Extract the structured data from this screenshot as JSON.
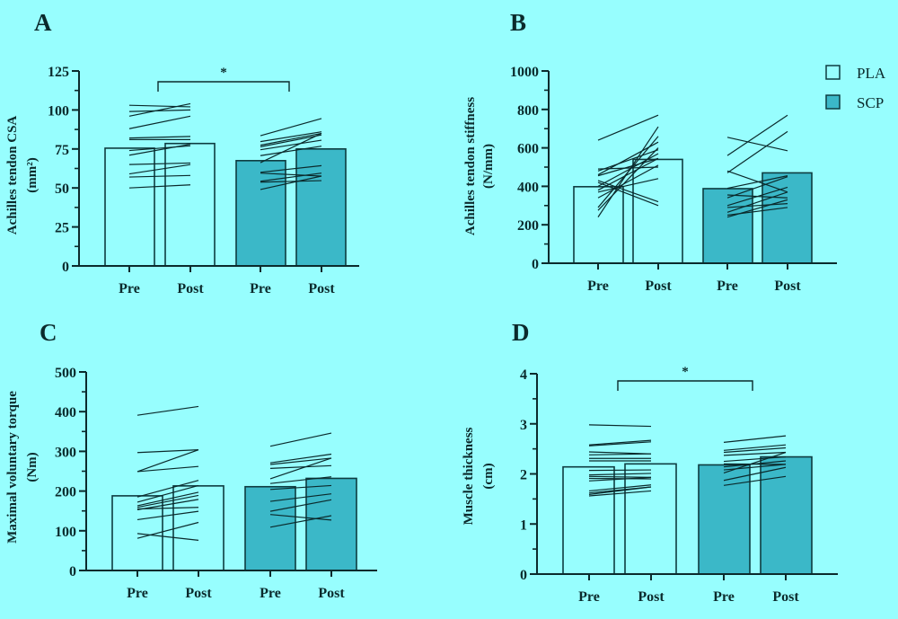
{
  "colors": {
    "background": "#97FEFE",
    "pla_fill": "#97FEFE",
    "scp_fill": "#3BB8C8",
    "outline": "#0E3C40",
    "line": "#0b2a2c"
  },
  "legend": {
    "placement": "top-right",
    "items": [
      {
        "label": "PLA",
        "group": "PLA"
      },
      {
        "label": "SCP",
        "group": "SCP"
      }
    ]
  },
  "chart_data": [
    {
      "panel": "A",
      "type": "bar",
      "ylabel": "Achilles tendon CSA",
      "yunit": "(mm²)",
      "ylim": [
        0,
        125
      ],
      "yticks": [
        0,
        25,
        50,
        75,
        100,
        125
      ],
      "categories": [
        "Pre",
        "Post",
        "Pre",
        "Post"
      ],
      "groups": [
        "PLA",
        "PLA",
        "SCP",
        "SCP"
      ],
      "values": [
        75.5,
        78.5,
        67.5,
        75
      ],
      "significance": {
        "label": "*",
        "between": [
          0,
          2
        ]
      },
      "paired": {
        "PLA": [
          [
            103,
            102
          ],
          [
            99,
            100
          ],
          [
            96,
            104
          ],
          [
            88,
            96
          ],
          [
            82,
            83
          ],
          [
            81,
            81
          ],
          [
            74,
            77
          ],
          [
            71,
            78
          ],
          [
            65,
            66
          ],
          [
            59,
            65
          ],
          [
            57,
            58
          ],
          [
            50,
            52
          ]
        ],
        "SCP": [
          [
            83.5,
            94.5
          ],
          [
            79.7,
            86
          ],
          [
            77.4,
            85
          ],
          [
            76.4,
            84
          ],
          [
            74.5,
            80.6
          ],
          [
            70.7,
            76.8
          ],
          [
            66.2,
            85
          ],
          [
            60,
            64.3
          ],
          [
            59.5,
            57.6
          ],
          [
            54.3,
            59.5
          ],
          [
            53.7,
            54.7
          ],
          [
            49,
            57.6
          ]
        ]
      }
    },
    {
      "panel": "B",
      "type": "bar",
      "ylabel": "Achilles tendon stiffness",
      "yunit": "(N/mm)",
      "ylim": [
        0,
        1000
      ],
      "yticks": [
        0,
        200,
        400,
        600,
        800,
        1000
      ],
      "categories": [
        "Pre",
        "Post",
        "Pre",
        "Post"
      ],
      "groups": [
        "PLA",
        "PLA",
        "SCP",
        "SCP"
      ],
      "values": [
        398,
        540,
        388,
        470
      ],
      "paired": {
        "PLA": [
          [
            640,
            770
          ],
          [
            490,
            500
          ],
          [
            480,
            590
          ],
          [
            460,
            630
          ],
          [
            455,
            545
          ],
          [
            430,
            320
          ],
          [
            420,
            300
          ],
          [
            400,
            570
          ],
          [
            380,
            545
          ],
          [
            370,
            440
          ],
          [
            340,
            510
          ],
          [
            290,
            660
          ],
          [
            275,
            600
          ],
          [
            240,
            710
          ]
        ],
        "SCP": [
          [
            655,
            585
          ],
          [
            560,
            770
          ],
          [
            470,
            685
          ],
          [
            480,
            370
          ],
          [
            390,
            455
          ],
          [
            355,
            340
          ],
          [
            340,
            450
          ],
          [
            300,
            395
          ],
          [
            290,
            310
          ],
          [
            265,
            370
          ],
          [
            250,
            290
          ],
          [
            240,
            330
          ]
        ]
      }
    },
    {
      "panel": "C",
      "type": "bar",
      "ylabel": "Maximal voluntary torque",
      "yunit": "(Nm)",
      "ylim": [
        0,
        500
      ],
      "yticks": [
        0,
        100,
        200,
        300,
        400,
        500
      ],
      "categories": [
        "Pre",
        "Post",
        "Pre",
        "Post"
      ],
      "groups": [
        "PLA",
        "PLA",
        "SCP",
        "SCP"
      ],
      "values": [
        188,
        213,
        211,
        232
      ],
      "paired": {
        "PLA": [
          [
            391,
            413
          ],
          [
            297,
            304
          ],
          [
            249,
            304
          ],
          [
            249,
            262
          ],
          [
            185,
            227
          ],
          [
            172,
            214
          ],
          [
            163,
            197
          ],
          [
            159,
            189
          ],
          [
            153,
            179
          ],
          [
            155,
            159
          ],
          [
            128,
            149
          ],
          [
            93,
            76
          ],
          [
            81,
            121
          ]
        ],
        "SCP": [
          [
            313,
            346
          ],
          [
            271,
            293
          ],
          [
            267,
            283
          ],
          [
            257,
            264
          ],
          [
            231,
            283
          ],
          [
            219,
            236
          ],
          [
            204,
            214
          ],
          [
            174,
            193
          ],
          [
            149,
            178
          ],
          [
            141,
            127
          ],
          [
            109,
            138
          ]
        ]
      }
    },
    {
      "panel": "D",
      "type": "bar",
      "ylabel": "Muscle thickness",
      "yunit": "(cm)",
      "ylim": [
        0,
        4
      ],
      "yticks": [
        0,
        1,
        2,
        3,
        4
      ],
      "categories": [
        "Pre",
        "Post",
        "Pre",
        "Post"
      ],
      "groups": [
        "PLA",
        "PLA",
        "SCP",
        "SCP"
      ],
      "values": [
        2.14,
        2.2,
        2.18,
        2.34
      ],
      "significance": {
        "label": "*",
        "between": [
          0,
          2
        ]
      },
      "paired": {
        "PLA": [
          [
            2.98,
            2.95
          ],
          [
            2.58,
            2.67
          ],
          [
            2.56,
            2.64
          ],
          [
            2.44,
            2.4
          ],
          [
            2.38,
            2.4
          ],
          [
            2.31,
            2.31
          ],
          [
            2.26,
            2.26
          ],
          [
            2.07,
            2.08
          ],
          [
            1.98,
            2.01
          ],
          [
            1.95,
            1.93
          ],
          [
            1.91,
            1.9
          ],
          [
            1.86,
            1.93
          ],
          [
            1.66,
            1.78
          ],
          [
            1.62,
            1.74
          ],
          [
            1.59,
            1.74
          ],
          [
            1.56,
            1.66
          ]
        ],
        "SCP": [
          [
            2.63,
            2.76
          ],
          [
            2.47,
            2.58
          ],
          [
            2.43,
            2.52
          ],
          [
            2.37,
            2.43
          ],
          [
            2.25,
            2.34
          ],
          [
            2.2,
            2.19
          ],
          [
            2.14,
            2.26
          ],
          [
            2.08,
            2.19
          ],
          [
            2.02,
            2.43
          ],
          [
            1.87,
            2.13
          ],
          [
            1.77,
            1.95
          ]
        ]
      }
    }
  ]
}
